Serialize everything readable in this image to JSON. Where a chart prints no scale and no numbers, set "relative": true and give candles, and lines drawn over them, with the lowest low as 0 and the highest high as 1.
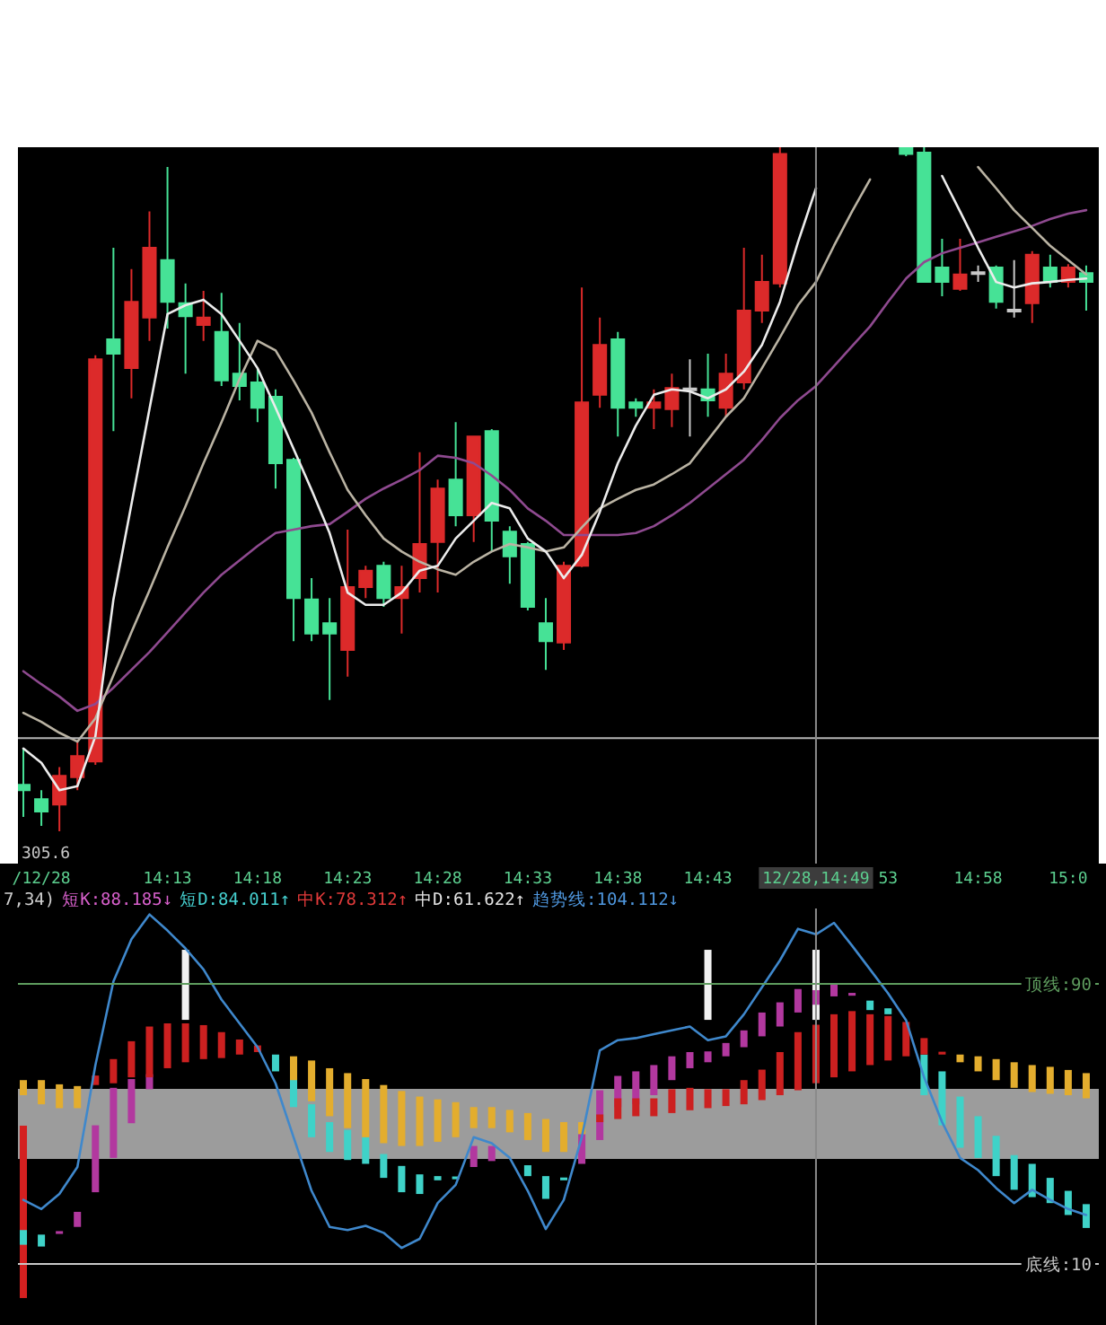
{
  "chart_data": [
    {
      "type": "candlestick",
      "relative": true,
      "categories": [
        null,
        "/12/28",
        null,
        null,
        null,
        null,
        null,
        null,
        "14:13",
        null,
        null,
        null,
        null,
        "14:18",
        null,
        null,
        null,
        null,
        "14:23",
        null,
        null,
        null,
        null,
        "14:28",
        null,
        null,
        null,
        null,
        "14:33",
        null,
        null,
        null,
        null,
        "14:38",
        null,
        null,
        null,
        null,
        "14:43",
        null,
        null,
        null,
        null,
        null,
        "12/28,14:49",
        null,
        null,
        null,
        "53",
        null,
        null,
        null,
        null,
        "14:58",
        null,
        null,
        null,
        null,
        "15:0",
        null
      ],
      "ohlc": [
        [
          0.068,
          0.121,
          0.021,
          0.06
        ],
        [
          0.047,
          0.06,
          0.008,
          0.029
        ],
        [
          0.039,
          0.094,
          0,
          0.081
        ],
        [
          0.079,
          0.131,
          0.06,
          0.11
        ],
        [
          0.102,
          0.696,
          0.097,
          0.69
        ],
        [
          0.719,
          0.853,
          0.585,
          0.698
        ],
        [
          0.677,
          0.822,
          0.633,
          0.774
        ],
        [
          0.751,
          0.906,
          0.717,
          0.853
        ],
        [
          0.835,
          0.971,
          0.735,
          0.774
        ],
        [
          0.772,
          0.801,
          0.669,
          0.753
        ],
        [
          0.74,
          0.79,
          0.717,
          0.751
        ],
        [
          0.73,
          0.787,
          0.651,
          0.659
        ],
        [
          0.669,
          0.743,
          0.63,
          0.651
        ],
        [
          0.656,
          0.677,
          0.598,
          0.619
        ],
        [
          0.635,
          0.646,
          0.501,
          0.538
        ],
        [
          0.543,
          0.546,
          0.278,
          0.341
        ],
        [
          0.339,
          0.37,
          0.278,
          0.289
        ],
        [
          0.304,
          0.341,
          0.192,
          0.289
        ],
        [
          0.265,
          0.441,
          0.226,
          0.357
        ],
        [
          0.357,
          0.388,
          0.341,
          0.381
        ],
        [
          0.388,
          0.394,
          0.328,
          0.341
        ],
        [
          0.341,
          0.388,
          0.289,
          0.357
        ],
        [
          0.37,
          0.554,
          0.349,
          0.42
        ],
        [
          0.423,
          0.514,
          0.349,
          0.501
        ],
        [
          0.514,
          0.598,
          0.446,
          0.462
        ],
        [
          0.462,
          0.577,
          0.423,
          0.577
        ],
        [
          0.585,
          0.588,
          0.409,
          0.454
        ],
        [
          0.438,
          0.446,
          0.362,
          0.402
        ],
        [
          0.42,
          0.423,
          0.323,
          0.328
        ],
        [
          0.304,
          0.341,
          0.236,
          0.278
        ],
        [
          0.276,
          0.394,
          0.265,
          0.388
        ],
        [
          0.388,
          0.795,
          0.386,
          0.627
        ],
        [
          0.638,
          0.751,
          0.619,
          0.711
        ],
        [
          0.719,
          0.73,
          0.577,
          0.619
        ],
        [
          0.627,
          0.633,
          0.606,
          0.619
        ],
        [
          0.619,
          0.646,
          0.588,
          0.627
        ],
        [
          0.617,
          0.669,
          0.591,
          0.648
        ],
        [
          0.646,
          0.69,
          0.577,
          0.646
        ],
        [
          0.646,
          0.698,
          0.606,
          0.63
        ],
        [
          0.619,
          0.698,
          0.606,
          0.669
        ],
        [
          0.656,
          0.853,
          0.646,
          0.761
        ],
        [
          0.761,
          0.843,
          0.743,
          0.803
        ],
        [
          0.801,
          1,
          0.795,
          0.99
        ],
        null,
        null,
        null,
        null,
        null,
        null,
        [
          1,
          1,
          0.987,
          0.99
        ],
        [
          0.992,
          1,
          0.803,
          0.803
        ],
        [
          0.824,
          0.866,
          0.782,
          0.803
        ],
        [
          0.793,
          0.866,
          0.79,
          0.814
        ],
        [
          0.816,
          0.827,
          0.803,
          0.816
        ],
        [
          0.824,
          0.827,
          0.764,
          0.774
        ],
        [
          0.761,
          0.835,
          0.751,
          0.761
        ],
        [
          0.772,
          0.848,
          0.743,
          0.843
        ],
        [
          0.824,
          0.843,
          0.795,
          0.803
        ],
        [
          0.803,
          0.829,
          0.795,
          0.824
        ],
        [
          0.816,
          0.827,
          0.761,
          0.803
        ]
      ],
      "colors": [
        "#46e296",
        "#46e296",
        "#dc2a2a",
        "#dc2a2a",
        "#dc2a2a",
        "#46e296",
        "#dc2a2a",
        "#dc2a2a",
        "#46e296",
        "#46e296",
        "#dc2a2a",
        "#46e296",
        "#46e296",
        "#46e296",
        "#46e296",
        "#46e296",
        "#46e296",
        "#46e296",
        "#dc2a2a",
        "#dc2a2a",
        "#46e296",
        "#dc2a2a",
        "#dc2a2a",
        "#dc2a2a",
        "#46e296",
        "#dc2a2a",
        "#46e296",
        "#46e296",
        "#46e296",
        "#46e296",
        "#dc2a2a",
        "#dc2a2a",
        "#dc2a2a",
        "#46e296",
        "#46e296",
        "#dc2a2a",
        "#dc2a2a",
        "#c8c8c8",
        "#46e296",
        "#dc2a2a",
        "#dc2a2a",
        "#dc2a2a",
        "#dc2a2a",
        null,
        null,
        null,
        null,
        null,
        null,
        "#46e296",
        "#46e296",
        "#46e296",
        "#dc2a2a",
        "#c8c8c8",
        "#46e296",
        "#c8c8c8",
        "#dc2a2a",
        "#46e296",
        "#dc2a2a",
        "#46e296"
      ],
      "series": [
        {
          "type": "line",
          "color": "#8f4a90",
          "values": [
            0.234,
            0.215,
            0.197,
            0.176,
            0.186,
            0.21,
            0.236,
            0.262,
            0.291,
            0.32,
            0.349,
            0.375,
            0.396,
            0.417,
            0.436,
            0.441,
            0.446,
            0.449,
            0.467,
            0.486,
            0.501,
            0.514,
            0.528,
            0.549,
            0.546,
            0.538,
            0.52,
            0.499,
            0.472,
            0.454,
            0.433,
            0.433,
            0.433,
            0.433,
            0.436,
            0.446,
            0.462,
            0.48,
            0.501,
            0.522,
            0.543,
            0.572,
            0.604,
            0.63,
            0.651,
            0.68,
            0.709,
            0.738,
            0.774,
            0.808,
            0.832,
            0.845,
            0.853,
            0.861,
            0.869,
            0.877,
            0.885,
            0.895,
            0.903,
            0.908
          ]
        },
        {
          "type": "line",
          "color": "#bab3a3",
          "values": [
            0.173,
            0.16,
            0.144,
            0.131,
            0.165,
            0.228,
            0.291,
            0.352,
            0.415,
            0.475,
            0.538,
            0.598,
            0.661,
            0.717,
            0.703,
            0.659,
            0.612,
            0.554,
            0.499,
            0.462,
            0.428,
            0.409,
            0.394,
            0.383,
            0.375,
            0.394,
            0.409,
            0.42,
            0.415,
            0.409,
            0.415,
            0.444,
            0.472,
            0.486,
            0.499,
            0.507,
            0.522,
            0.538,
            0.572,
            0.606,
            0.633,
            0.677,
            0.722,
            0.769,
            0.803,
            0.856,
            0.906,
            0.953,
            null,
            null,
            null,
            null,
            null,
            0.971,
            0.94,
            0.908,
            0.882,
            0.856,
            0.835,
            0.814
          ]
        },
        {
          "type": "line",
          "color": "#ececec",
          "values": [
            0.121,
            0.1,
            0.06,
            0.066,
            0.139,
            0.339,
            0.478,
            0.617,
            0.756,
            0.769,
            0.777,
            0.756,
            0.717,
            0.677,
            0.619,
            0.559,
            0.499,
            0.436,
            0.349,
            0.331,
            0.331,
            0.349,
            0.381,
            0.388,
            0.428,
            0.454,
            0.48,
            0.472,
            0.428,
            0.409,
            0.37,
            0.404,
            0.467,
            0.538,
            0.593,
            0.638,
            0.646,
            0.643,
            0.633,
            0.646,
            0.672,
            0.711,
            0.774,
            0.861,
            0.94,
            null,
            null,
            null,
            null,
            null,
            null,
            0.958,
            0.906,
            0.853,
            0.803,
            0.795,
            0.801,
            0.803,
            0.806,
            0.808
          ]
        }
      ],
      "tick_labels": "x",
      "ref_lines": [
        {
          "axis": "y",
          "value": 0.136,
          "color": "#b4b4b4"
        },
        {
          "axis": "x",
          "value": "12/28,14:49",
          "color": "#8a8a8a"
        }
      ],
      "annotations": [
        "305.6"
      ]
    },
    {
      "type": "bar",
      "categories": [
        null,
        "/12/28",
        null,
        null,
        null,
        null,
        null,
        null,
        "14:13",
        null,
        null,
        null,
        null,
        "14:18",
        null,
        null,
        null,
        null,
        "14:23",
        null,
        null,
        null,
        null,
        "14:28",
        null,
        null,
        null,
        null,
        "14:33",
        null,
        null,
        null,
        null,
        "14:38",
        null,
        null,
        null,
        null,
        "14:43",
        null,
        null,
        null,
        null,
        null,
        "12/28,14:49",
        null,
        null,
        null,
        "53",
        null,
        null,
        null,
        null,
        "14:58",
        null,
        null,
        null,
        null,
        "15:0",
        null
      ],
      "series": [
        {
          "type": "bar",
          "base": [
            0.3,
            null,
            null,
            null,
            null,
            null,
            null,
            null,
            null,
            79.7,
            null,
            null,
            null,
            null,
            null,
            null,
            null,
            null,
            null,
            null,
            null,
            null,
            null,
            null,
            null,
            null,
            null,
            null,
            null,
            null,
            null,
            null,
            null,
            null,
            null,
            null,
            null,
            null,
            79.7,
            null,
            null,
            null,
            null,
            null,
            79.7,
            null,
            null,
            null,
            null,
            null,
            null,
            null,
            null,
            null,
            null,
            null,
            null,
            null,
            null,
            null
          ],
          "values": [
            49.2,
            null,
            null,
            null,
            null,
            null,
            null,
            null,
            null,
            20.0,
            null,
            null,
            null,
            null,
            null,
            null,
            null,
            null,
            null,
            null,
            null,
            null,
            null,
            null,
            null,
            null,
            null,
            null,
            null,
            null,
            null,
            null,
            null,
            null,
            null,
            null,
            null,
            null,
            20.0,
            null,
            null,
            null,
            null,
            null,
            20.0,
            null,
            null,
            null,
            null,
            null,
            null,
            null,
            null,
            null,
            null,
            null,
            null,
            null,
            null,
            null
          ],
          "colors": [
            "#d42020",
            null,
            null,
            null,
            null,
            null,
            null,
            null,
            null,
            "#f2f2f2",
            null,
            null,
            null,
            null,
            null,
            null,
            null,
            null,
            null,
            null,
            null,
            null,
            null,
            null,
            null,
            null,
            null,
            null,
            null,
            null,
            null,
            null,
            null,
            null,
            null,
            null,
            null,
            null,
            "#f2f2f2",
            null,
            null,
            null,
            null,
            null,
            "#f2f2f2",
            null,
            null,
            null,
            null,
            null,
            null,
            null,
            null,
            null,
            null,
            null,
            null,
            null,
            null,
            null
          ]
        },
        {
          "type": "bar",
          "base": [
            19.7,
            18.4,
            18.6,
            20.6,
            30.5,
            40.3,
            50.2,
            59.9,
            null,
            null,
            null,
            null,
            null,
            null,
            69.8,
            63.3,
            55.6,
            50.5,
            48.3,
            46.2,
            41.4,
            38.0,
            35.6,
            35.1,
            35.0,
            37.7,
            39.4,
            null,
            38.2,
            35.1,
            34.7,
            38.6,
            45.4,
            54.8,
            55.6,
            58.2,
            62.5,
            65.9,
            67.6,
            69.3,
            71.9,
            75.0,
            77.8,
            81.8,
            84.011,
            86.4,
            86.6,
            85.2,
            83.0,
            null,
            69.8,
            65.0,
            57.8,
            52.2,
            46.6,
            41.1,
            38.6,
            34.6,
            30.9,
            27.1
          ],
          "values": [
            -4.2,
            -3.4,
            0.8,
            4.3,
            19.1,
            20.0,
            12.6,
            4.3,
            null,
            null,
            null,
            null,
            null,
            null,
            -4.8,
            -8.5,
            -9.4,
            -8.5,
            -8.6,
            -7.6,
            -6.8,
            -7.5,
            -5.6,
            -1.2,
            -0.8,
            6.0,
            4.3,
            null,
            -3.1,
            -6.5,
            -0.8,
            8.5,
            14.2,
            8.9,
            9.4,
            8.6,
            6.8,
            4.6,
            3.1,
            3.8,
            4.8,
            6.8,
            6.9,
            6.7,
            4.174,
            3.4,
            0.8,
            -2.7,
            -1.7,
            null,
            -11.6,
            -15.4,
            -14.6,
            -11.9,
            -11.5,
            -9.9,
            -9.5,
            -7.2,
            -6.9,
            -6.8
          ],
          "colors": [
            "#3fd2c8",
            "#3fd2c8",
            "#b2389f",
            "#b2389f",
            "#b2389f",
            "#b2389f",
            "#b2389f",
            "#b2389f",
            null,
            null,
            null,
            null,
            null,
            null,
            "#3fd2c8",
            "#3fd2c8",
            "#3fd2c8",
            "#3fd2c8",
            "#3fd2c8",
            "#3fd2c8",
            "#3fd2c8",
            "#3fd2c8",
            "#3fd2c8",
            "#3fd2c8",
            "#3fd2c8",
            "#b2389f",
            "#b2389f",
            null,
            "#3fd2c8",
            "#3fd2c8",
            "#3fd2c8",
            "#b2389f",
            "#b2389f",
            "#b2389f",
            "#b2389f",
            "#b2389f",
            "#b2389f",
            "#b2389f",
            "#b2389f",
            "#b2389f",
            "#b2389f",
            "#b2389f",
            "#b2389f",
            "#b2389f",
            "#b2389f",
            "#b2389f",
            "#b2389f",
            "#3fd2c8",
            "#3fd2c8",
            null,
            "#3fd2c8",
            "#3fd2c8",
            "#3fd2c8",
            "#3fd2c8",
            "#3fd2c8",
            "#3fd2c8",
            "#3fd2c8",
            "#3fd2c8",
            "#3fd2c8",
            "#3fd2c8"
          ]
        },
        {
          "type": "bar",
          "base": [
            62.5,
            62.5,
            61.3,
            60.8,
            61.1,
            61.6,
            63.3,
            63.3,
            65.9,
            67.6,
            68.5,
            68.8,
            69.8,
            70.5,
            null,
            69.3,
            68.1,
            65.9,
            64.5,
            62.8,
            61.1,
            59.4,
            57.8,
            57.0,
            56.2,
            54.8,
            54.8,
            54.0,
            53.1,
            51.4,
            50.5,
            50.5,
            50.5,
            51.4,
            52.2,
            52.2,
            53.1,
            53.9,
            54.5,
            55.1,
            55.6,
            56.8,
            58.2,
            59.6,
            61.622,
            63.3,
            65.0,
            66.8,
            68.1,
            69.3,
            69.8,
            69.8,
            69.8,
            69.3,
            68.5,
            67.6,
            66.8,
            66.3,
            65.4,
            64.5
          ],
          "values": [
            -4.3,
            -6.9,
            -6.8,
            -6.3,
            2.7,
            6.9,
            10.3,
            14.5,
            12.8,
            11.1,
            9.7,
            7.4,
            4.3,
            1.9,
            null,
            -6.8,
            -11.6,
            -13.7,
            -15.7,
            -16.6,
            -16.6,
            -15.7,
            -14.1,
            -12.1,
            -10.0,
            -6.0,
            -6.0,
            -6.4,
            -7.7,
            -9.4,
            -8.5,
            -3.4,
            2.2,
            5.9,
            5.1,
            5.1,
            6.8,
            6.4,
            5.4,
            4.8,
            6.9,
            8.7,
            12.3,
            16.6,
            16.69,
            18.0,
            17.2,
            14.5,
            12.7,
            9.8,
            4.7,
            0.8,
            -2.2,
            -4.3,
            -6.0,
            -7.3,
            -7.7,
            -7.7,
            -7.2,
            -7.2
          ],
          "colors": [
            "#e3ad2e",
            "#e3ad2e",
            "#e3ad2e",
            "#e3ad2e",
            "#cc2020",
            "#cc2020",
            "#cc2020",
            "#cc2020",
            "#cc2020",
            "#cc2020",
            "#cc2020",
            "#cc2020",
            "#cc2020",
            "#cc2020",
            null,
            "#e3ad2e",
            "#e3ad2e",
            "#e3ad2e",
            "#e3ad2e",
            "#e3ad2e",
            "#e3ad2e",
            "#e3ad2e",
            "#e3ad2e",
            "#e3ad2e",
            "#e3ad2e",
            "#e3ad2e",
            "#e3ad2e",
            "#e3ad2e",
            "#e3ad2e",
            "#e3ad2e",
            "#e3ad2e",
            "#e3ad2e",
            "#cc2020",
            "#cc2020",
            "#cc2020",
            "#cc2020",
            "#cc2020",
            "#cc2020",
            "#cc2020",
            "#cc2020",
            "#cc2020",
            "#cc2020",
            "#cc2020",
            "#cc2020",
            "#cc2020",
            "#cc2020",
            "#cc2020",
            "#cc2020",
            "#cc2020",
            "#cc2020",
            "#cc2020",
            "#cc2020",
            "#e3ad2e",
            "#e3ad2e",
            "#e3ad2e",
            "#e3ad2e",
            "#e3ad2e",
            "#e3ad2e",
            "#e3ad2e",
            "#e3ad2e"
          ]
        },
        {
          "type": "line",
          "color": "#3f88cc",
          "values": [
            28.3,
            25.7,
            30.0,
            37.7,
            66.8,
            90.7,
            102.7,
            109.8,
            105.2,
            100.1,
            94.1,
            85.5,
            78.7,
            71.9,
            61.6,
            46.2,
            30.9,
            20.6,
            19.7,
            20.9,
            18.9,
            14.6,
            17.2,
            27.4,
            32.6,
            46.2,
            44.5,
            40.3,
            30.9,
            20.0,
            28.3,
            46.2,
            71.0,
            73.9,
            74.5,
            75.6,
            76.7,
            77.8,
            73.9,
            75.0,
            81.3,
            89.0,
            96.7,
            105.7,
            104.112,
            107.4,
            100.9,
            94.1,
            87.3,
            79.6,
            63.3,
            50.5,
            40.3,
            36.8,
            31.7,
            27.4,
            31.2,
            28.3,
            25.7,
            24.0
          ]
        }
      ],
      "ylim": [
        -7.4,
        111.5
      ],
      "yticks": [
        {
          "value": 10,
          "label": "底线:10"
        },
        {
          "value": 90,
          "label": "顶线:90"
        }
      ],
      "tick_labels": "y",
      "bands": [
        {
          "axis": "y",
          "from": 40,
          "to": 60,
          "color": "#9c9c9c"
        }
      ],
      "ref_lines": [
        {
          "axis": "y",
          "value": 10,
          "color": "#c8c8c8"
        },
        {
          "axis": "y",
          "value": 90,
          "color": "#5e9c5e"
        },
        {
          "axis": "x",
          "value": "12/28,14:49",
          "color": "#8a8a8a"
        }
      ],
      "annotations": [
        "7,34)",
        "短K:88.185↓",
        "短D:84.011↑",
        "中K:78.312↑",
        "中D:61.622↑",
        "趋势线:104.112↓"
      ]
    }
  ]
}
